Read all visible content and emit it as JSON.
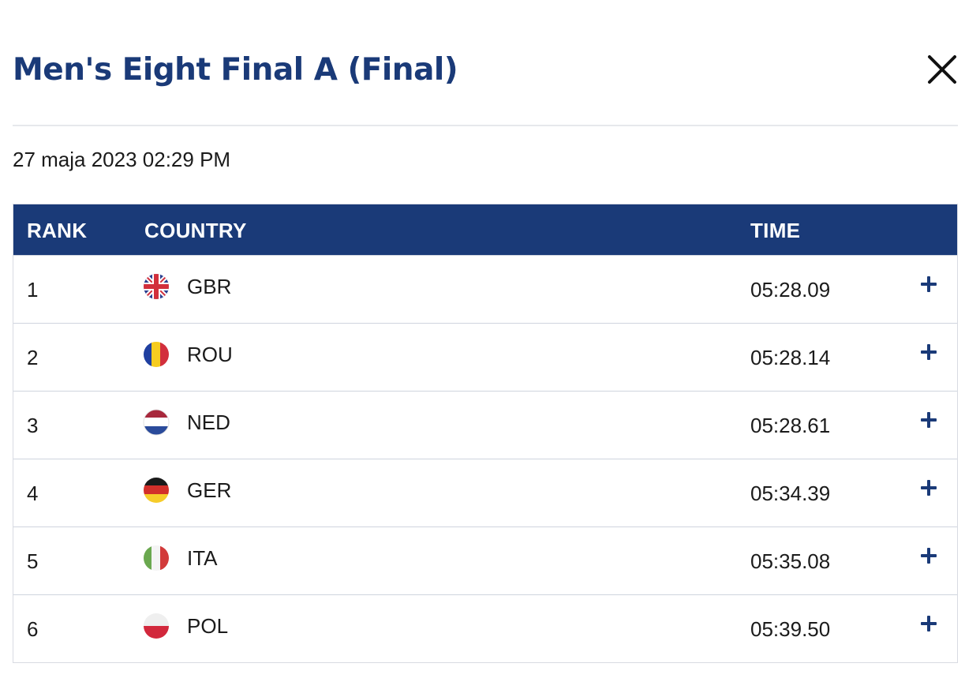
{
  "header": {
    "title": "Men's Eight Final A (Final)",
    "close_icon": "close-icon"
  },
  "event": {
    "datetime": "27 maja 2023 02:29 PM"
  },
  "table": {
    "columns": {
      "rank": "RANK",
      "country": "COUNTRY",
      "time": "TIME"
    },
    "rows": [
      {
        "rank": "1",
        "country": "GBR",
        "flag_icon": "gbr-flag-icon",
        "time": "05:28.09",
        "expand_icon": "plus-icon"
      },
      {
        "rank": "2",
        "country": "ROU",
        "flag_icon": "rou-flag-icon",
        "time": "05:28.14",
        "expand_icon": "plus-icon"
      },
      {
        "rank": "3",
        "country": "NED",
        "flag_icon": "ned-flag-icon",
        "time": "05:28.61",
        "expand_icon": "plus-icon"
      },
      {
        "rank": "4",
        "country": "GER",
        "flag_icon": "ger-flag-icon",
        "time": "05:34.39",
        "expand_icon": "plus-icon"
      },
      {
        "rank": "5",
        "country": "ITA",
        "flag_icon": "ita-flag-icon",
        "time": "05:35.08",
        "expand_icon": "plus-icon"
      },
      {
        "rank": "6",
        "country": "POL",
        "flag_icon": "pol-flag-icon",
        "time": "05:39.50",
        "expand_icon": "plus-icon"
      }
    ]
  },
  "colors": {
    "primary": "#1a3a78",
    "row_divider": "#cfd4de",
    "header_text": "#ffffff"
  }
}
